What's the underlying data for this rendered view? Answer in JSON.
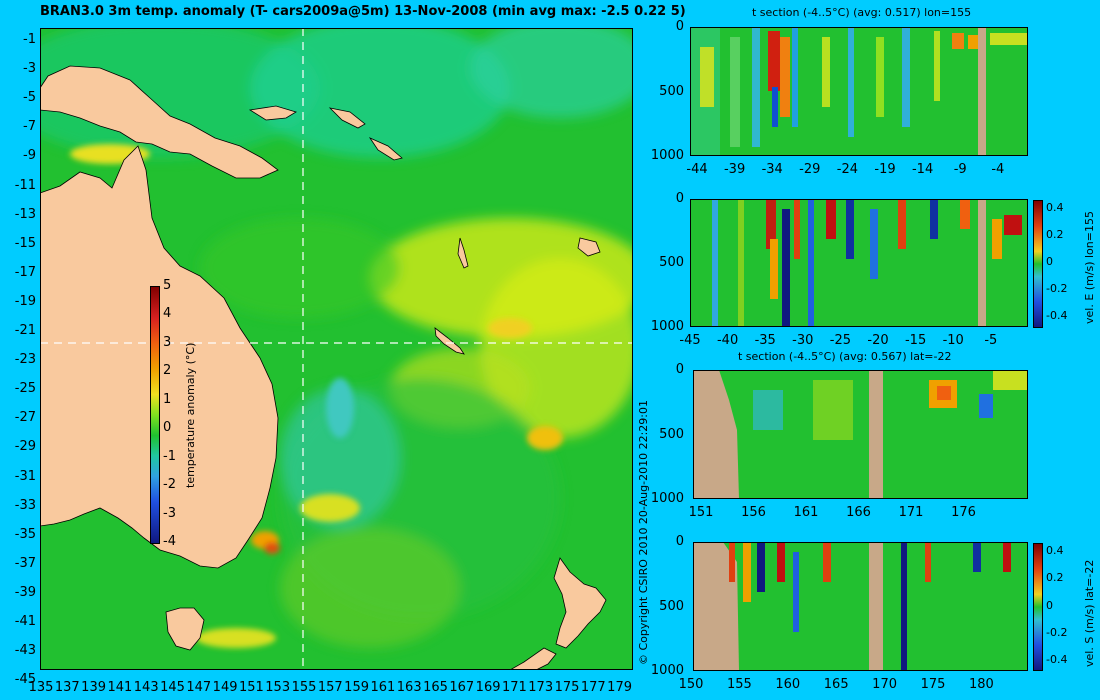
{
  "main_map": {
    "title": "BRAN3.0 3m temp. anomaly (T- cars2009a@5m) 13-Nov-2008 (min avg max: -2.5 0.22 5)",
    "lat_ticks": [
      "-1",
      "-3",
      "-5",
      "-7",
      "-9",
      "-11",
      "-13",
      "-15",
      "-17",
      "-19",
      "-21",
      "-23",
      "-25",
      "-27",
      "-29",
      "-31",
      "-33",
      "-35",
      "-37",
      "-39",
      "-41",
      "-43",
      "-45"
    ],
    "lon_ticks": [
      "135",
      "137",
      "139",
      "141",
      "143",
      "145",
      "147",
      "149",
      "151",
      "153",
      "155",
      "157",
      "159",
      "161",
      "163",
      "165",
      "167",
      "169",
      "171",
      "173",
      "175",
      "177",
      "179"
    ],
    "colorbar": {
      "label": "temperature anomaly (°C)",
      "ticks": [
        "5",
        "4",
        "3",
        "2",
        "1",
        "0",
        "-1",
        "-2",
        "-3",
        "-4"
      ]
    },
    "section_lines": {
      "lon": 155,
      "lat": -22
    },
    "colors": {
      "land": "#f9c99e",
      "ocean": "#22c030",
      "background": "#00ccff"
    }
  },
  "copyright": "© Copyright CSIRO 2010   20-Aug-2010 22:29:01",
  "panels": [
    {
      "title": "t section (-4..5°C) (avg: 0.517) lon=155",
      "x_ticks": [
        "-44",
        "-39",
        "-34",
        "-29",
        "-24",
        "-19",
        "-14",
        "-9",
        "-4"
      ],
      "y_ticks": [
        "0",
        "500",
        "1000"
      ],
      "colorbar_label": "",
      "colorbar_ticks": []
    },
    {
      "title": "",
      "x_ticks": [
        "-45",
        "-40",
        "-35",
        "-30",
        "-25",
        "-20",
        "-15",
        "-10",
        "-5"
      ],
      "y_ticks": [
        "0",
        "500",
        "1000"
      ],
      "colorbar_label": "vel. E (m/s) lon=155",
      "colorbar_ticks": [
        "0.4",
        "0.2",
        "0",
        "-0.2",
        "-0.4"
      ]
    },
    {
      "title": "t section (-4..5°C) (avg: 0.567) lat=-22",
      "x_ticks": [
        "151",
        "156",
        "161",
        "166",
        "171",
        "176"
      ],
      "y_ticks": [
        "0",
        "500",
        "1000"
      ],
      "colorbar_label": "",
      "colorbar_ticks": []
    },
    {
      "title": "",
      "x_ticks": [
        "150",
        "155",
        "160",
        "165",
        "170",
        "175",
        "180"
      ],
      "y_ticks": [
        "0",
        "500",
        "1000"
      ],
      "colorbar_label": "vel. S (m/s) lat=-22",
      "colorbar_ticks": [
        "0.4",
        "0.2",
        "0",
        "-0.2",
        "-0.4"
      ]
    }
  ],
  "chart_data": [
    {
      "type": "heatmap",
      "title": "BRAN3.0 3m temp. anomaly (T- cars2009a@5m) 13-Nov-2008 (min avg max: -2.5 0.22 5)",
      "xlabel": "",
      "ylabel": "",
      "xlim": [
        135,
        180
      ],
      "ylim": [
        -45,
        0
      ],
      "colorbar": {
        "label": "temperature anomaly (°C)",
        "range": [
          -4,
          5
        ]
      },
      "stats": {
        "min": -2.5,
        "avg": 0.22,
        "max": 5
      }
    },
    {
      "type": "heatmap",
      "title": "t section (-4..5°C) (avg: 0.517) lon=155",
      "xlim": [
        -45,
        0
      ],
      "ylim": [
        1000,
        0
      ],
      "color_range": [
        -4,
        5
      ],
      "avg": 0.517
    },
    {
      "type": "heatmap",
      "title": "",
      "xlim": [
        -45,
        0
      ],
      "ylim": [
        1000,
        0
      ],
      "colorbar": {
        "label": "vel. E (m/s) lon=155",
        "range": [
          -0.4,
          0.4
        ]
      }
    },
    {
      "type": "heatmap",
      "title": "t section (-4..5°C) (avg: 0.567) lat=-22",
      "xlim": [
        150,
        180
      ],
      "ylim": [
        1000,
        0
      ],
      "color_range": [
        -4,
        5
      ],
      "avg": 0.567
    },
    {
      "type": "heatmap",
      "title": "",
      "xlim": [
        150,
        180
      ],
      "ylim": [
        1000,
        0
      ],
      "colorbar": {
        "label": "vel. S (m/s) lat=-22",
        "range": [
          -0.4,
          0.4
        ]
      }
    }
  ]
}
